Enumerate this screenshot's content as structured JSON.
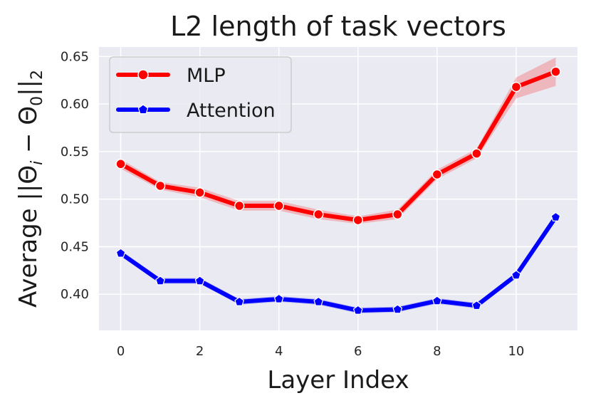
{
  "chart_data": {
    "type": "line",
    "title": "L2 length of task vectors",
    "xlabel": "Layer Index",
    "ylabel": "Average ||Θ",
    "ylabel_sub_i": "i",
    "ylabel_minus": " − Θ",
    "ylabel_sub_0": "0",
    "ylabel_close": "||",
    "ylabel_sub_2": "2",
    "x": [
      0,
      1,
      2,
      3,
      4,
      5,
      6,
      7,
      8,
      9,
      10,
      11
    ],
    "xlim": [
      -0.55,
      11.55
    ],
    "ylim": [
      0.362,
      0.66
    ],
    "xticks": [
      "0",
      "2",
      "4",
      "6",
      "8",
      "10"
    ],
    "yticks": [
      "0.40",
      "0.45",
      "0.50",
      "0.55",
      "0.60",
      "0.65"
    ],
    "grid": true,
    "legend_position": "upper-left",
    "series": [
      {
        "name": "MLP",
        "color": "#ff0000",
        "marker": "circle",
        "values": [
          0.537,
          0.514,
          0.507,
          0.493,
          0.493,
          0.484,
          0.478,
          0.484,
          0.526,
          0.548,
          0.618,
          0.634
        ],
        "band_lower": [
          0.532,
          0.51,
          0.502,
          0.488,
          0.488,
          0.479,
          0.474,
          0.479,
          0.521,
          0.543,
          0.606,
          0.619
        ],
        "band_upper": [
          0.542,
          0.518,
          0.512,
          0.498,
          0.498,
          0.489,
          0.482,
          0.489,
          0.531,
          0.553,
          0.628,
          0.649
        ]
      },
      {
        "name": "Attention",
        "color": "#0000ff",
        "marker": "pentagon",
        "values": [
          0.443,
          0.414,
          0.414,
          0.392,
          0.395,
          0.392,
          0.383,
          0.384,
          0.393,
          0.388,
          0.42,
          0.481
        ],
        "band_lower": [
          0.44,
          0.411,
          0.411,
          0.389,
          0.392,
          0.389,
          0.38,
          0.381,
          0.39,
          0.385,
          0.417,
          0.478
        ],
        "band_upper": [
          0.446,
          0.417,
          0.417,
          0.395,
          0.398,
          0.395,
          0.386,
          0.387,
          0.396,
          0.391,
          0.423,
          0.484
        ]
      }
    ]
  }
}
